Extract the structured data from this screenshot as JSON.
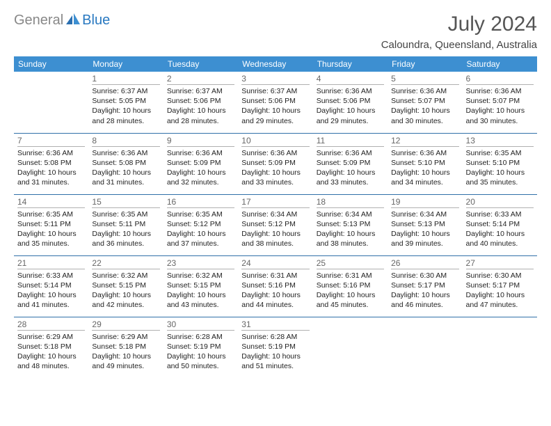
{
  "logo": {
    "gray": "General",
    "blue": "Blue"
  },
  "title": "July 2024",
  "location": "Caloundra, Queensland, Australia",
  "headers": [
    "Sunday",
    "Monday",
    "Tuesday",
    "Wednesday",
    "Thursday",
    "Friday",
    "Saturday"
  ],
  "colors": {
    "header_bg": "#3d8fd1",
    "header_fg": "#ffffff",
    "row_border": "#2f6fa8",
    "daynum_line": "#b0b0b0",
    "logo_gray": "#888888",
    "logo_blue": "#2878c0"
  },
  "weeks": [
    [
      {
        "day": "",
        "sunrise": "",
        "sunset": "",
        "daylight": ""
      },
      {
        "day": "1",
        "sunrise": "Sunrise: 6:37 AM",
        "sunset": "Sunset: 5:05 PM",
        "daylight": "Daylight: 10 hours and 28 minutes."
      },
      {
        "day": "2",
        "sunrise": "Sunrise: 6:37 AM",
        "sunset": "Sunset: 5:06 PM",
        "daylight": "Daylight: 10 hours and 28 minutes."
      },
      {
        "day": "3",
        "sunrise": "Sunrise: 6:37 AM",
        "sunset": "Sunset: 5:06 PM",
        "daylight": "Daylight: 10 hours and 29 minutes."
      },
      {
        "day": "4",
        "sunrise": "Sunrise: 6:36 AM",
        "sunset": "Sunset: 5:06 PM",
        "daylight": "Daylight: 10 hours and 29 minutes."
      },
      {
        "day": "5",
        "sunrise": "Sunrise: 6:36 AM",
        "sunset": "Sunset: 5:07 PM",
        "daylight": "Daylight: 10 hours and 30 minutes."
      },
      {
        "day": "6",
        "sunrise": "Sunrise: 6:36 AM",
        "sunset": "Sunset: 5:07 PM",
        "daylight": "Daylight: 10 hours and 30 minutes."
      }
    ],
    [
      {
        "day": "7",
        "sunrise": "Sunrise: 6:36 AM",
        "sunset": "Sunset: 5:08 PM",
        "daylight": "Daylight: 10 hours and 31 minutes."
      },
      {
        "day": "8",
        "sunrise": "Sunrise: 6:36 AM",
        "sunset": "Sunset: 5:08 PM",
        "daylight": "Daylight: 10 hours and 31 minutes."
      },
      {
        "day": "9",
        "sunrise": "Sunrise: 6:36 AM",
        "sunset": "Sunset: 5:09 PM",
        "daylight": "Daylight: 10 hours and 32 minutes."
      },
      {
        "day": "10",
        "sunrise": "Sunrise: 6:36 AM",
        "sunset": "Sunset: 5:09 PM",
        "daylight": "Daylight: 10 hours and 33 minutes."
      },
      {
        "day": "11",
        "sunrise": "Sunrise: 6:36 AM",
        "sunset": "Sunset: 5:09 PM",
        "daylight": "Daylight: 10 hours and 33 minutes."
      },
      {
        "day": "12",
        "sunrise": "Sunrise: 6:36 AM",
        "sunset": "Sunset: 5:10 PM",
        "daylight": "Daylight: 10 hours and 34 minutes."
      },
      {
        "day": "13",
        "sunrise": "Sunrise: 6:35 AM",
        "sunset": "Sunset: 5:10 PM",
        "daylight": "Daylight: 10 hours and 35 minutes."
      }
    ],
    [
      {
        "day": "14",
        "sunrise": "Sunrise: 6:35 AM",
        "sunset": "Sunset: 5:11 PM",
        "daylight": "Daylight: 10 hours and 35 minutes."
      },
      {
        "day": "15",
        "sunrise": "Sunrise: 6:35 AM",
        "sunset": "Sunset: 5:11 PM",
        "daylight": "Daylight: 10 hours and 36 minutes."
      },
      {
        "day": "16",
        "sunrise": "Sunrise: 6:35 AM",
        "sunset": "Sunset: 5:12 PM",
        "daylight": "Daylight: 10 hours and 37 minutes."
      },
      {
        "day": "17",
        "sunrise": "Sunrise: 6:34 AM",
        "sunset": "Sunset: 5:12 PM",
        "daylight": "Daylight: 10 hours and 38 minutes."
      },
      {
        "day": "18",
        "sunrise": "Sunrise: 6:34 AM",
        "sunset": "Sunset: 5:13 PM",
        "daylight": "Daylight: 10 hours and 38 minutes."
      },
      {
        "day": "19",
        "sunrise": "Sunrise: 6:34 AM",
        "sunset": "Sunset: 5:13 PM",
        "daylight": "Daylight: 10 hours and 39 minutes."
      },
      {
        "day": "20",
        "sunrise": "Sunrise: 6:33 AM",
        "sunset": "Sunset: 5:14 PM",
        "daylight": "Daylight: 10 hours and 40 minutes."
      }
    ],
    [
      {
        "day": "21",
        "sunrise": "Sunrise: 6:33 AM",
        "sunset": "Sunset: 5:14 PM",
        "daylight": "Daylight: 10 hours and 41 minutes."
      },
      {
        "day": "22",
        "sunrise": "Sunrise: 6:32 AM",
        "sunset": "Sunset: 5:15 PM",
        "daylight": "Daylight: 10 hours and 42 minutes."
      },
      {
        "day": "23",
        "sunrise": "Sunrise: 6:32 AM",
        "sunset": "Sunset: 5:15 PM",
        "daylight": "Daylight: 10 hours and 43 minutes."
      },
      {
        "day": "24",
        "sunrise": "Sunrise: 6:31 AM",
        "sunset": "Sunset: 5:16 PM",
        "daylight": "Daylight: 10 hours and 44 minutes."
      },
      {
        "day": "25",
        "sunrise": "Sunrise: 6:31 AM",
        "sunset": "Sunset: 5:16 PM",
        "daylight": "Daylight: 10 hours and 45 minutes."
      },
      {
        "day": "26",
        "sunrise": "Sunrise: 6:30 AM",
        "sunset": "Sunset: 5:17 PM",
        "daylight": "Daylight: 10 hours and 46 minutes."
      },
      {
        "day": "27",
        "sunrise": "Sunrise: 6:30 AM",
        "sunset": "Sunset: 5:17 PM",
        "daylight": "Daylight: 10 hours and 47 minutes."
      }
    ],
    [
      {
        "day": "28",
        "sunrise": "Sunrise: 6:29 AM",
        "sunset": "Sunset: 5:18 PM",
        "daylight": "Daylight: 10 hours and 48 minutes."
      },
      {
        "day": "29",
        "sunrise": "Sunrise: 6:29 AM",
        "sunset": "Sunset: 5:18 PM",
        "daylight": "Daylight: 10 hours and 49 minutes."
      },
      {
        "day": "30",
        "sunrise": "Sunrise: 6:28 AM",
        "sunset": "Sunset: 5:19 PM",
        "daylight": "Daylight: 10 hours and 50 minutes."
      },
      {
        "day": "31",
        "sunrise": "Sunrise: 6:28 AM",
        "sunset": "Sunset: 5:19 PM",
        "daylight": "Daylight: 10 hours and 51 minutes."
      },
      {
        "day": "",
        "sunrise": "",
        "sunset": "",
        "daylight": ""
      },
      {
        "day": "",
        "sunrise": "",
        "sunset": "",
        "daylight": ""
      },
      {
        "day": "",
        "sunrise": "",
        "sunset": "",
        "daylight": ""
      }
    ]
  ]
}
